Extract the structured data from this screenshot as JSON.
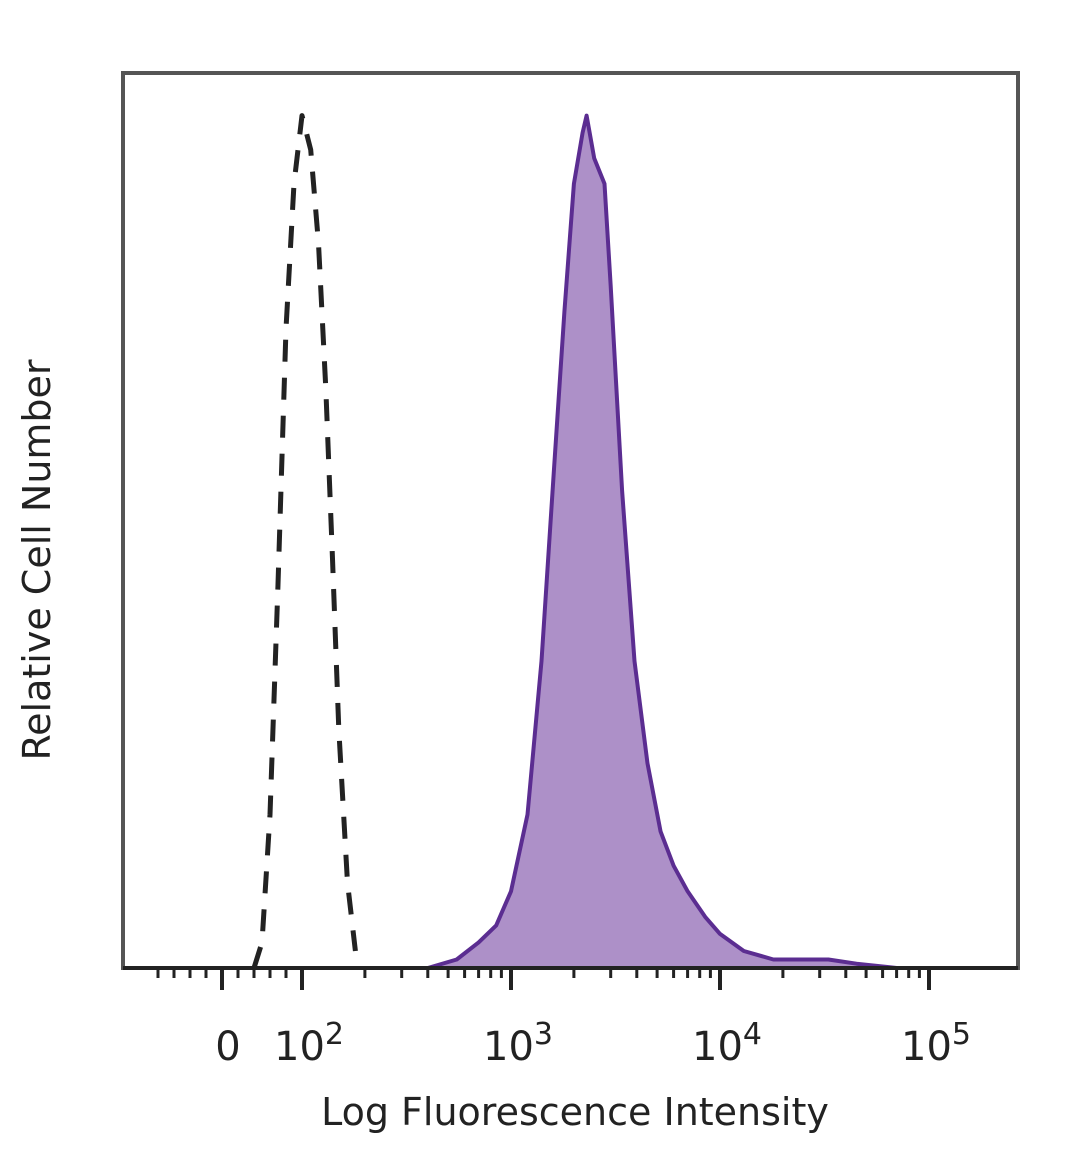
{
  "chart_data": {
    "type": "area",
    "xlabel": "Log Fluorescence Intensity",
    "ylabel": "Relative Cell Number",
    "x_scale": "biexponential",
    "xlim": [
      -80,
      200000
    ],
    "ylim": [
      0,
      105
    ],
    "grid": false,
    "x_ticks": [
      {
        "value": 0,
        "base": "0",
        "exp": ""
      },
      {
        "value": 100,
        "base": "10",
        "exp": "2"
      },
      {
        "value": 1000,
        "base": "10",
        "exp": "3"
      },
      {
        "value": 10000,
        "base": "10",
        "exp": "4"
      },
      {
        "value": 100000,
        "base": "10",
        "exp": "5"
      }
    ],
    "series": [
      {
        "style": "dashed",
        "color": "#222222",
        "fill": "none",
        "points": [
          [
            40,
            0
          ],
          [
            50,
            3
          ],
          [
            60,
            18
          ],
          [
            70,
            45
          ],
          [
            80,
            75
          ],
          [
            90,
            92
          ],
          [
            100,
            100
          ],
          [
            110,
            96
          ],
          [
            120,
            85
          ],
          [
            130,
            68
          ],
          [
            140,
            48
          ],
          [
            150,
            28
          ],
          [
            165,
            10
          ],
          [
            180,
            2
          ]
        ]
      },
      {
        "style": "solid",
        "color": "#5b2d91",
        "fill": "#ad90c8",
        "points": [
          [
            200,
            0
          ],
          [
            400,
            0
          ],
          [
            550,
            1
          ],
          [
            700,
            3
          ],
          [
            850,
            5
          ],
          [
            1000,
            9
          ],
          [
            1200,
            18
          ],
          [
            1400,
            36
          ],
          [
            1600,
            58
          ],
          [
            1800,
            77
          ],
          [
            2000,
            92
          ],
          [
            2200,
            98
          ],
          [
            2300,
            100
          ],
          [
            2500,
            95
          ],
          [
            2800,
            92
          ],
          [
            3000,
            80
          ],
          [
            3400,
            56
          ],
          [
            3900,
            36
          ],
          [
            4500,
            24
          ],
          [
            5200,
            16
          ],
          [
            6000,
            12
          ],
          [
            7000,
            9
          ],
          [
            8500,
            6
          ],
          [
            10000,
            4
          ],
          [
            13000,
            2
          ],
          [
            18000,
            1
          ],
          [
            25000,
            1
          ],
          [
            33000,
            1
          ],
          [
            45000,
            0.5
          ],
          [
            70000,
            0
          ],
          [
            120000,
            0
          ]
        ]
      }
    ]
  }
}
